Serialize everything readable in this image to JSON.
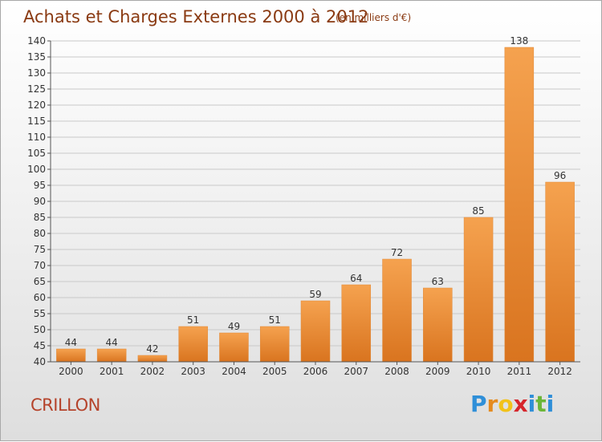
{
  "chart_data": {
    "type": "bar",
    "title": "Achats et Charges Externes 2000 à 2012",
    "subtitle": "(en milliers d'€)",
    "categories": [
      "2000",
      "2001",
      "2002",
      "2003",
      "2004",
      "2005",
      "2006",
      "2007",
      "2008",
      "2009",
      "2010",
      "2011",
      "2012"
    ],
    "values": [
      44,
      44,
      42,
      51,
      49,
      51,
      59,
      64,
      72,
      63,
      85,
      138,
      96
    ],
    "ylim": [
      40,
      140
    ],
    "yticks": [
      40,
      45,
      50,
      55,
      60,
      65,
      70,
      75,
      80,
      85,
      90,
      95,
      100,
      105,
      110,
      115,
      120,
      125,
      130,
      135,
      140
    ],
    "grid": true,
    "bar_color_light": "#f5a24f",
    "bar_color_dark": "#d9741f"
  },
  "commune": "CRILLON",
  "logo": {
    "letters": [
      "P",
      "r",
      "o",
      "x",
      "i",
      "t",
      "i"
    ],
    "colors": [
      "#2f8fd8",
      "#e58b1f",
      "#f2c21a",
      "#d6252b",
      "#2f8fd8",
      "#6bb638",
      "#2f8fd8"
    ]
  }
}
